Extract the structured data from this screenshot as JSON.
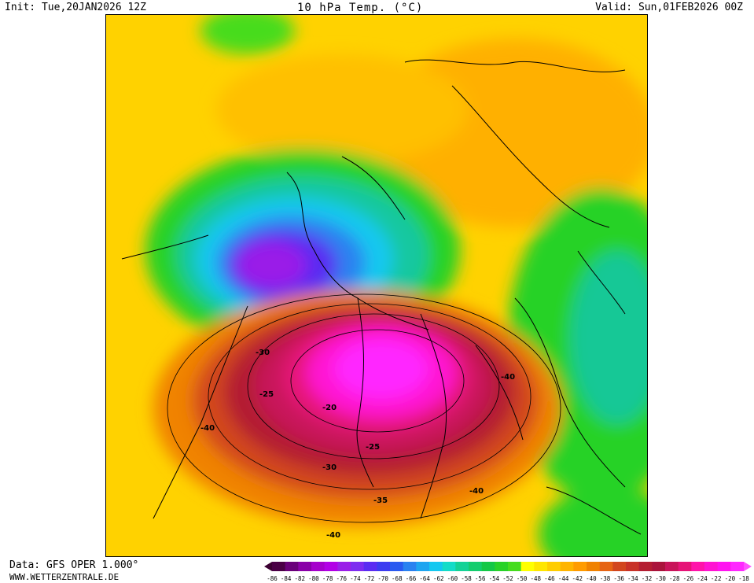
{
  "header": {
    "init": "Init: Tue,20JAN2026 12Z",
    "title": "10 hPa Temp. (°C)",
    "valid": "Valid: Sun,01FEB2026 00Z"
  },
  "footer": {
    "data_source": "Data: GFS OPER 1.000°",
    "website": "WWW.WETTERZENTRALE.DE"
  },
  "contour_labels": [
    "-30",
    "-25",
    "-20",
    "-25",
    "-30",
    "-35",
    "-40",
    "-40",
    "-40",
    "-40"
  ],
  "colorbar": {
    "ticks": [
      "-86",
      "-84",
      "-82",
      "-80",
      "-78",
      "-76",
      "-74",
      "-72",
      "-70",
      "-68",
      "-66",
      "-64",
      "-62",
      "-60",
      "-58",
      "-56",
      "-54",
      "-52",
      "-50",
      "-48",
      "-46",
      "-44",
      "-42",
      "-40",
      "-38",
      "-36",
      "-34",
      "-32",
      "-30",
      "-28",
      "-26",
      "-24",
      "-22",
      "-20",
      "-18"
    ],
    "colors": [
      "#4b0046",
      "#6a007a",
      "#8a00a8",
      "#a600cc",
      "#b200e6",
      "#9a1ee8",
      "#7d2cf0",
      "#5a2cf2",
      "#3c3cf0",
      "#2a5af0",
      "#2a82f0",
      "#1ea5f0",
      "#14c8f0",
      "#14dcc8",
      "#14d296",
      "#14cd6e",
      "#14c846",
      "#28d228",
      "#46dc1e",
      "#ffff00",
      "#ffe600",
      "#ffcd00",
      "#ffb400",
      "#ff9b00",
      "#f08200",
      "#e66414",
      "#d2461e",
      "#c83228",
      "#b41e32",
      "#aa143c",
      "#c8145a",
      "#e61478",
      "#ff14aa",
      "#ff14d2",
      "#ff14f0",
      "#ff28ff"
    ],
    "min_color": "#3c0032",
    "max_color": "#ff50ff"
  },
  "colors": {
    "background": "#ffffff",
    "cold_core": "#9b1ee6",
    "warm_core": "#ff14d2",
    "mid": "#ffa500"
  }
}
